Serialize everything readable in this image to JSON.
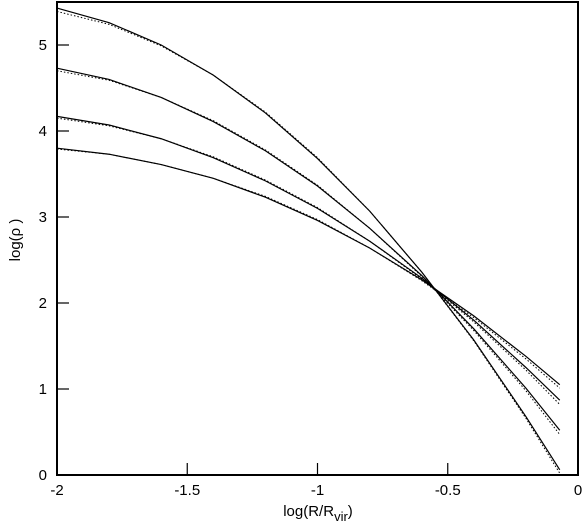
{
  "chart_data": {
    "type": "line",
    "x_label": {
      "main": "log(R/R",
      "sub": "vir",
      "end": ")"
    },
    "y_label": "log(ρ )",
    "x": [
      -2,
      -1.8,
      -1.6,
      -1.4,
      -1.2,
      -1,
      -0.8,
      -0.6,
      -0.4,
      -0.2,
      -0.07
    ],
    "series": [
      {
        "color": "#000000",
        "style": "solid",
        "values": [
          5.43,
          5.26,
          5.0,
          4.65,
          4.21,
          3.68,
          3.07,
          2.36,
          1.57,
          0.68,
          0.06
        ]
      },
      {
        "color": "#000000",
        "style": "dotted",
        "values": [
          5.39,
          5.24,
          4.99,
          4.65,
          4.22,
          3.69,
          3.07,
          2.36,
          1.56,
          0.66,
          0.02
        ]
      },
      {
        "color": "#000000",
        "style": "solid",
        "values": [
          4.73,
          4.6,
          4.39,
          4.11,
          3.77,
          3.36,
          2.87,
          2.32,
          1.7,
          1.01,
          0.52
        ]
      },
      {
        "color": "#000000",
        "style": "dotted",
        "values": [
          4.7,
          4.59,
          4.39,
          4.12,
          3.78,
          3.37,
          2.87,
          2.31,
          1.68,
          0.98,
          0.47
        ]
      },
      {
        "color": "#000000",
        "style": "solid",
        "values": [
          4.17,
          4.07,
          3.91,
          3.69,
          3.42,
          3.1,
          2.72,
          2.29,
          1.8,
          1.25,
          0.87
        ]
      },
      {
        "color": "#000000",
        "style": "dotted",
        "values": [
          4.15,
          4.06,
          3.91,
          3.7,
          3.43,
          3.11,
          2.72,
          2.28,
          1.78,
          1.22,
          0.82
        ]
      },
      {
        "color": "#000000",
        "style": "solid",
        "values": [
          3.8,
          3.73,
          3.61,
          3.45,
          3.23,
          2.96,
          2.64,
          2.27,
          1.85,
          1.38,
          1.05
        ]
      },
      {
        "color": "#000000",
        "style": "dotted",
        "values": [
          3.79,
          3.73,
          3.61,
          3.45,
          3.24,
          2.97,
          2.64,
          2.26,
          1.83,
          1.35,
          1.01
        ]
      }
    ],
    "xlim": [
      -2,
      0
    ],
    "ylim": [
      0,
      5.5
    ],
    "xticks": [
      -2,
      -1.5,
      -1,
      -0.5,
      0
    ],
    "yticks": [
      0,
      1,
      2,
      3,
      4,
      5
    ],
    "grid": false
  }
}
